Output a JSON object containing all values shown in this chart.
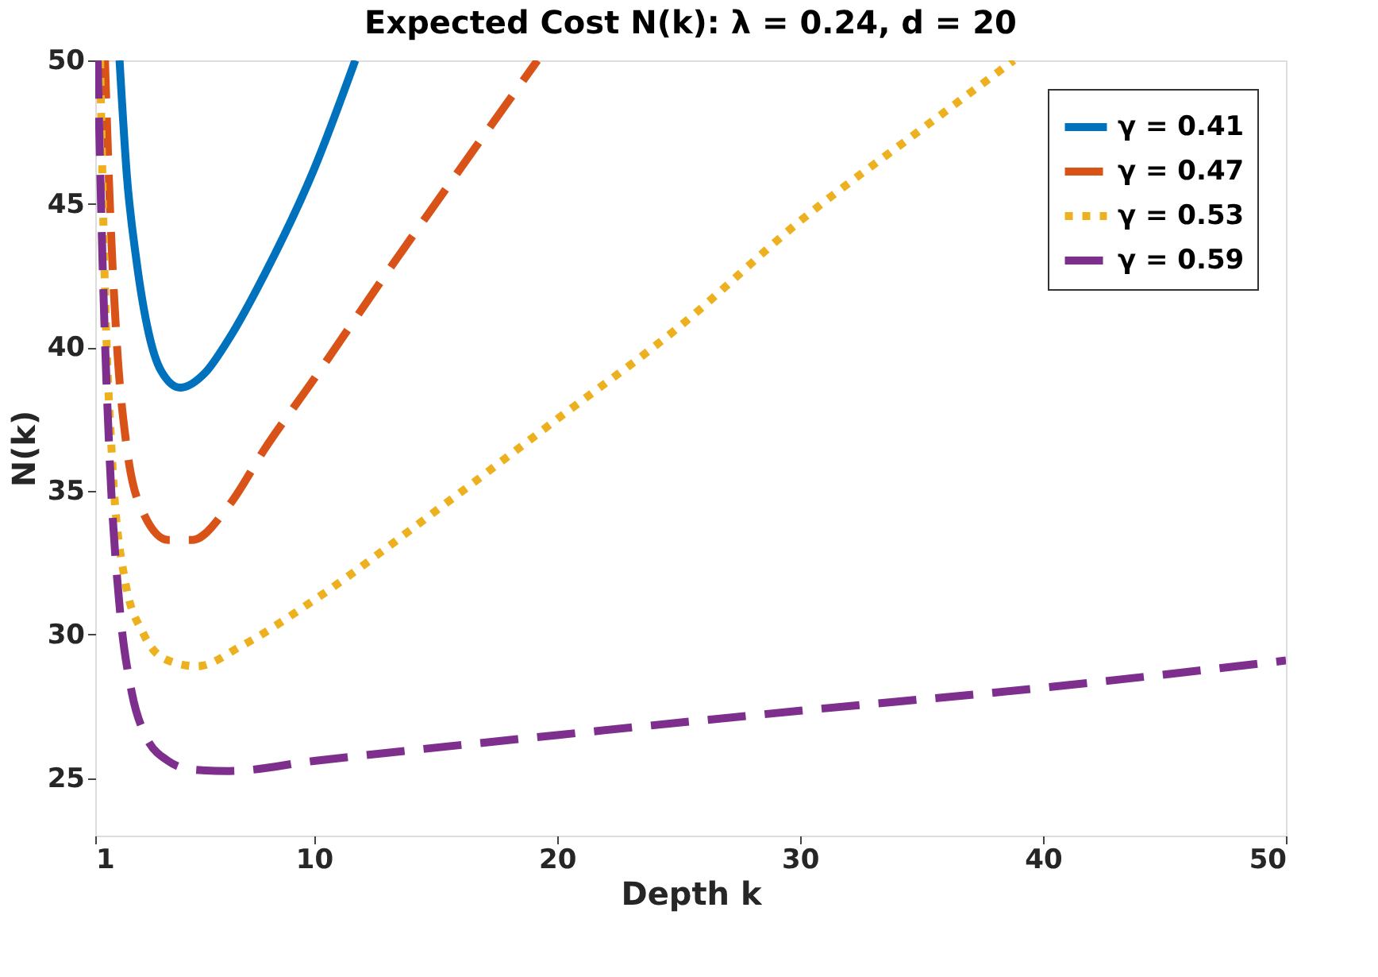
{
  "chart_data": {
    "type": "line",
    "title": "Expected Cost N(k): λ = 0.24, d = 20",
    "xlabel": "Depth k",
    "ylabel": "N(k)",
    "xlim": [
      1,
      50
    ],
    "xticks": [
      1,
      10,
      20,
      30,
      40,
      50
    ],
    "ylim": [
      23,
      50
    ],
    "yticks": [
      25,
      30,
      35,
      40,
      45,
      50
    ],
    "grid": false,
    "legend": "top right",
    "series": [
      {
        "name": "γ = 0.41",
        "color": "#0072bd",
        "line_style": "solid",
        "x": [
          2.0,
          2.3,
          2.7,
          3.2,
          3.7,
          4.5,
          5.5,
          6.5,
          8,
          10,
          11.7
        ],
        "values": [
          50,
          46,
          43,
          40.5,
          39.2,
          38.6,
          39.1,
          40.3,
          42.6,
          46.2,
          50
        ]
      },
      {
        "name": "γ = 0.47",
        "color": "#d95319",
        "line_style": "dashed",
        "x": [
          1.4,
          1.6,
          1.9,
          2.3,
          3,
          4,
          5,
          6.5,
          8,
          10,
          13,
          16,
          19.2
        ],
        "values": [
          50,
          45,
          40,
          36.5,
          34.2,
          33.3,
          33.3,
          34.5,
          36.5,
          38.9,
          42.6,
          46.2,
          50
        ]
      },
      {
        "name": "γ = 0.53",
        "color": "#edb120",
        "line_style": "dotted",
        "x": [
          1.2,
          1.4,
          1.7,
          2.2,
          3,
          4,
          5.2,
          7,
          10,
          15,
          20,
          25,
          30,
          35,
          38.8
        ],
        "values": [
          50,
          42,
          36,
          32,
          30,
          29.1,
          28.9,
          29.6,
          31.2,
          34.3,
          37.5,
          40.7,
          44.4,
          47.6,
          50
        ]
      },
      {
        "name": "γ = 0.59",
        "color": "#7e2f8e",
        "line_style": "dashed",
        "x": [
          1.1,
          1.3,
          1.6,
          2,
          2.5,
          3,
          4,
          5,
          6.5,
          10,
          20,
          30,
          40,
          50
        ],
        "values": [
          50,
          43,
          36,
          31,
          28,
          26.6,
          25.6,
          25.3,
          25.25,
          25.6,
          26.5,
          27.35,
          28.15,
          29.1
        ]
      }
    ]
  }
}
